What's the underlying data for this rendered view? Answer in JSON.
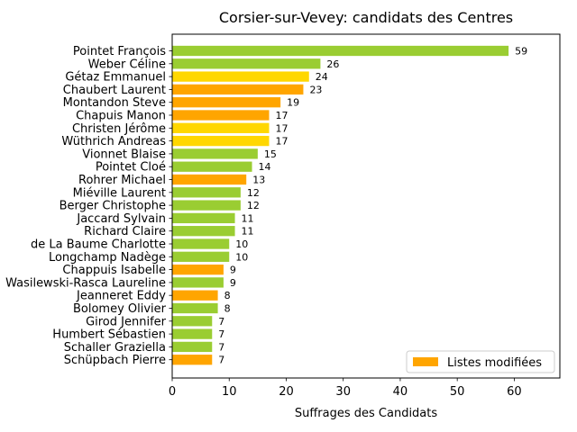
{
  "chart_data": {
    "type": "bar",
    "orientation": "horizontal",
    "title": "Corsier-sur-Vevey: candidats des Centres",
    "xlabel": "Suffrages des Candidats",
    "ylabel": "",
    "xlim": [
      0,
      68
    ],
    "xticks": [
      0,
      10,
      20,
      30,
      40,
      50,
      60
    ],
    "categories": [
      "Pointet François",
      "Weber Céline",
      "Gétaz Emmanuel",
      "Chaubert Laurent",
      "Montandon Steve",
      "Chapuis Manon",
      "Christen Jérôme",
      "Wüthrich Andreas",
      "Vionnet Blaise",
      "Pointet Cloé",
      "Rohrer Michael",
      "Miéville Laurent",
      "Berger Christophe",
      "Jaccard Sylvain",
      "Richard Claire",
      "de La Baume Charlotte",
      "Longchamp Nadège",
      "Chappuis Isabelle",
      "Wasilewski-Rasca Laureline",
      "Jeanneret Eddy",
      "Bolomey Olivier",
      "Girod Jennifer",
      "Humbert Sébastien",
      "Schaller Graziella",
      "Schüpbach Pierre"
    ],
    "values": [
      59,
      26,
      24,
      23,
      19,
      17,
      17,
      17,
      15,
      14,
      13,
      12,
      12,
      11,
      11,
      10,
      10,
      9,
      9,
      8,
      8,
      7,
      7,
      7,
      7
    ],
    "colors": [
      "#9acd32",
      "#9acd32",
      "#ffd700",
      "#ffa500",
      "#ffa500",
      "#ffa500",
      "#ffd700",
      "#ffd700",
      "#9acd32",
      "#9acd32",
      "#ffa500",
      "#9acd32",
      "#9acd32",
      "#9acd32",
      "#9acd32",
      "#9acd32",
      "#9acd32",
      "#ffa500",
      "#9acd32",
      "#ffa500",
      "#9acd32",
      "#9acd32",
      "#9acd32",
      "#9acd32",
      "#ffa500"
    ],
    "legend": {
      "position": "lower-right",
      "entries": [
        {
          "label": "Listes modifiées",
          "color": "#ffa500"
        }
      ]
    },
    "grid": false
  }
}
